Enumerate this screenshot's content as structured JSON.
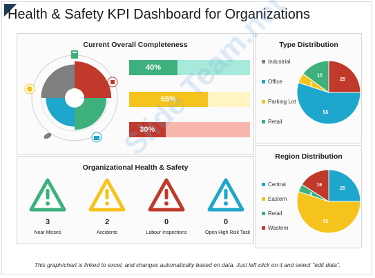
{
  "header": {
    "title": "Health & Safety KPI Dashboard for Organizations"
  },
  "completeness": {
    "title": "Current Overall Completeness",
    "bars": [
      {
        "label": "40%",
        "value": 0.4,
        "color": "#3db07d",
        "bg": "#a7eadb"
      },
      {
        "label": "65%",
        "value": 0.65,
        "color": "#f6c31c",
        "bg": "#fff5c4"
      },
      {
        "label": "30%",
        "value": 0.3,
        "color": "#c0392b",
        "bg": "#f7b7ad"
      }
    ],
    "icons": [
      "clipboard-icon",
      "building-icon",
      "briefcase-icon",
      "leaf-icon",
      "globe-icon"
    ]
  },
  "type_distribution": {
    "title": "Type Distribution",
    "legend": [
      {
        "label": "Industrial",
        "color": "#7f7f7f"
      },
      {
        "label": "Office",
        "color": "#1fa6cc"
      },
      {
        "label": "Parking Lot",
        "color": "#f6c31c"
      },
      {
        "label": "Retail",
        "color": "#3db07d"
      }
    ]
  },
  "region_distribution": {
    "title": "Region Distribution",
    "legend": [
      {
        "label": "Central",
        "color": "#1fa6cc"
      },
      {
        "label": "Eastern",
        "color": "#f6c31c"
      },
      {
        "label": "Retail",
        "color": "#3db07d"
      },
      {
        "label": "Wastern",
        "color": "#c0392b"
      }
    ]
  },
  "health_safety": {
    "title": "Organizational Health & Safety",
    "items": [
      {
        "count": "3",
        "label": "Near Misses",
        "color": "#3db07d"
      },
      {
        "count": "2",
        "label": "Accidents",
        "color": "#f6c31c"
      },
      {
        "count": "0",
        "label": "Labour Inspections",
        "color": "#c0392b"
      },
      {
        "count": "0",
        "label": "Open High Risk Task",
        "color": "#1fa6cc"
      }
    ]
  },
  "footer": {
    "note": "This graph/chart is linked to excel, and changes automatically based on data. Just left click on it and select \"edit data\"."
  },
  "watermark": "Slide Team.net",
  "chart_data": [
    {
      "type": "bar",
      "categories": [
        "",
        "",
        ""
      ],
      "values": [
        40,
        65,
        30
      ],
      "title": "Current Overall Completeness",
      "xlim": [
        0,
        100
      ]
    },
    {
      "type": "bar",
      "title": "",
      "categories": [
        "",
        "",
        "",
        ""
      ],
      "values": [
        85,
        70,
        60,
        75
      ],
      "ylim": [
        0,
        100
      ],
      "polar": true,
      "colors": [
        "#c0392b",
        "#3db07d",
        "#1fa6cc",
        "#7f7f7f"
      ]
    },
    {
      "type": "pie",
      "title": "Type Distribution",
      "categories": [
        "Industrial",
        "Office",
        "Parking Lot",
        "Retail"
      ],
      "values": [
        25,
        55,
        5,
        15
      ],
      "colors": [
        "#c0392b",
        "#1fa6cc",
        "#f6c31c",
        "#3db07d"
      ]
    },
    {
      "type": "pie",
      "title": "Region Distribution",
      "categories": [
        "Central",
        "Eastern",
        "Retail",
        "Wastern"
      ],
      "values": [
        25,
        55,
        4,
        16
      ],
      "colors": [
        "#1fa6cc",
        "#f6c31c",
        "#3db07d",
        "#c0392b"
      ]
    }
  ]
}
